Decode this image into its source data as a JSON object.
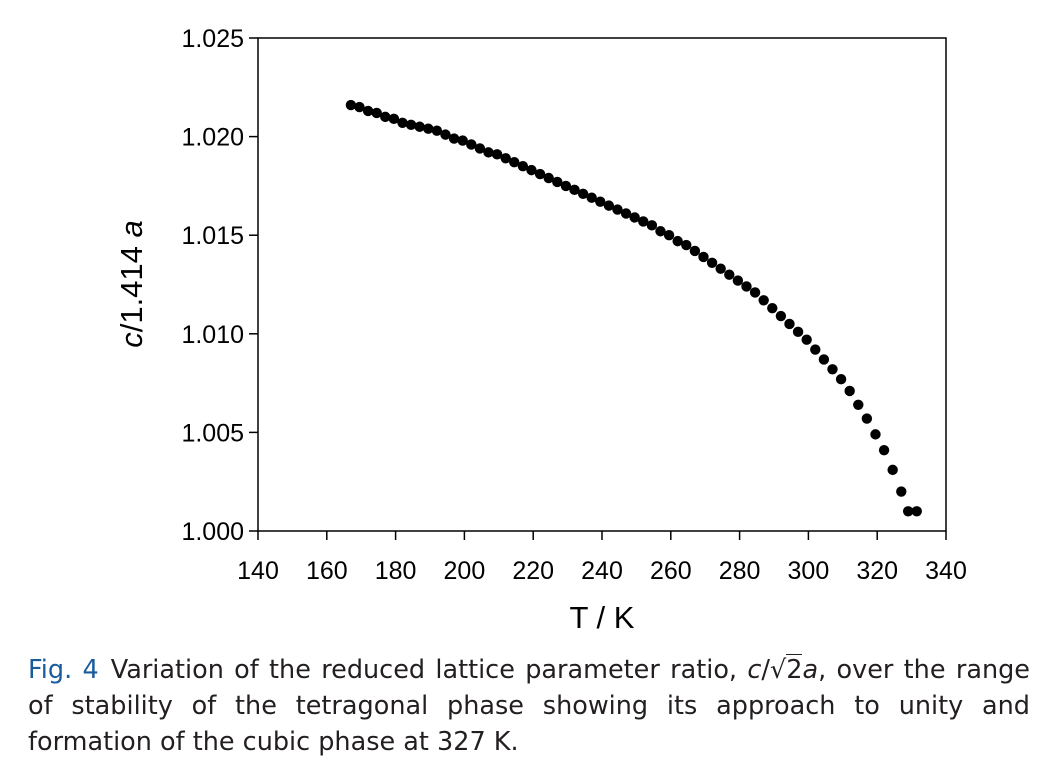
{
  "chart_data": {
    "type": "scatter",
    "xlabel": "T / K",
    "ylabel_prefix": "c",
    "ylabel_suffix": "/1.414 ",
    "ylabel_var": "a",
    "xlim": [
      140,
      340
    ],
    "ylim": [
      1.0,
      1.025
    ],
    "xticks": [
      140,
      160,
      180,
      200,
      220,
      240,
      260,
      280,
      300,
      320,
      340
    ],
    "xtick_labels": [
      "140",
      "160",
      "180",
      "200",
      "220",
      "240",
      "260",
      "280",
      "300",
      "320",
      "340"
    ],
    "yticks": [
      1.0,
      1.005,
      1.01,
      1.015,
      1.02,
      1.025
    ],
    "ytick_labels": [
      "1.000",
      "1.005",
      "1.010",
      "1.015",
      "1.020",
      "1.025"
    ],
    "grid": false,
    "legend": "none",
    "marker_color": "#000000",
    "x": [
      167,
      169.5,
      172,
      174.5,
      177,
      179.5,
      182,
      184.5,
      187,
      189.5,
      192,
      194.5,
      197,
      199.5,
      202,
      204.5,
      207,
      209.5,
      212,
      214.5,
      217,
      219.5,
      222,
      224.5,
      227,
      229.5,
      232,
      234.5,
      237,
      239.5,
      242,
      244.5,
      247,
      249.5,
      252,
      254.5,
      257,
      259.5,
      262,
      264.5,
      267,
      269.5,
      272,
      274.5,
      277,
      279.5,
      282,
      284.5,
      287,
      289.5,
      292,
      294.5,
      297,
      299.5,
      302,
      304.5,
      307,
      309.5,
      312,
      314.5,
      317,
      319.5,
      322,
      324.5,
      327,
      329,
      331.5
    ],
    "y": [
      1.0216,
      1.0215,
      1.0213,
      1.0212,
      1.021,
      1.0209,
      1.0207,
      1.0206,
      1.0205,
      1.0204,
      1.0203,
      1.0201,
      1.0199,
      1.0198,
      1.0196,
      1.0194,
      1.0192,
      1.0191,
      1.0189,
      1.0187,
      1.0185,
      1.0183,
      1.0181,
      1.0179,
      1.0177,
      1.0175,
      1.0173,
      1.0171,
      1.0169,
      1.0167,
      1.0165,
      1.0163,
      1.0161,
      1.0159,
      1.0157,
      1.0155,
      1.0152,
      1.015,
      1.0147,
      1.0145,
      1.0142,
      1.0139,
      1.0136,
      1.0133,
      1.013,
      1.0127,
      1.0124,
      1.0121,
      1.0117,
      1.0113,
      1.0109,
      1.0105,
      1.0101,
      1.0097,
      1.0092,
      1.0087,
      1.0082,
      1.0077,
      1.0071,
      1.0064,
      1.0057,
      1.0049,
      1.0041,
      1.0031,
      1.002,
      1.001,
      1.001
    ]
  },
  "caption": {
    "label": "Fig. 4",
    "pre": "Variation of the reduced lattice parameter ratio, ",
    "var_c": "c",
    "slash": "/",
    "sqrt_symbol": "√",
    "sqrt_arg": "2",
    "var_a": "a",
    "post": ", over the range of stability of the tetragonal phase showing its approach to unity and formation of the cubic phase at 327 K."
  }
}
